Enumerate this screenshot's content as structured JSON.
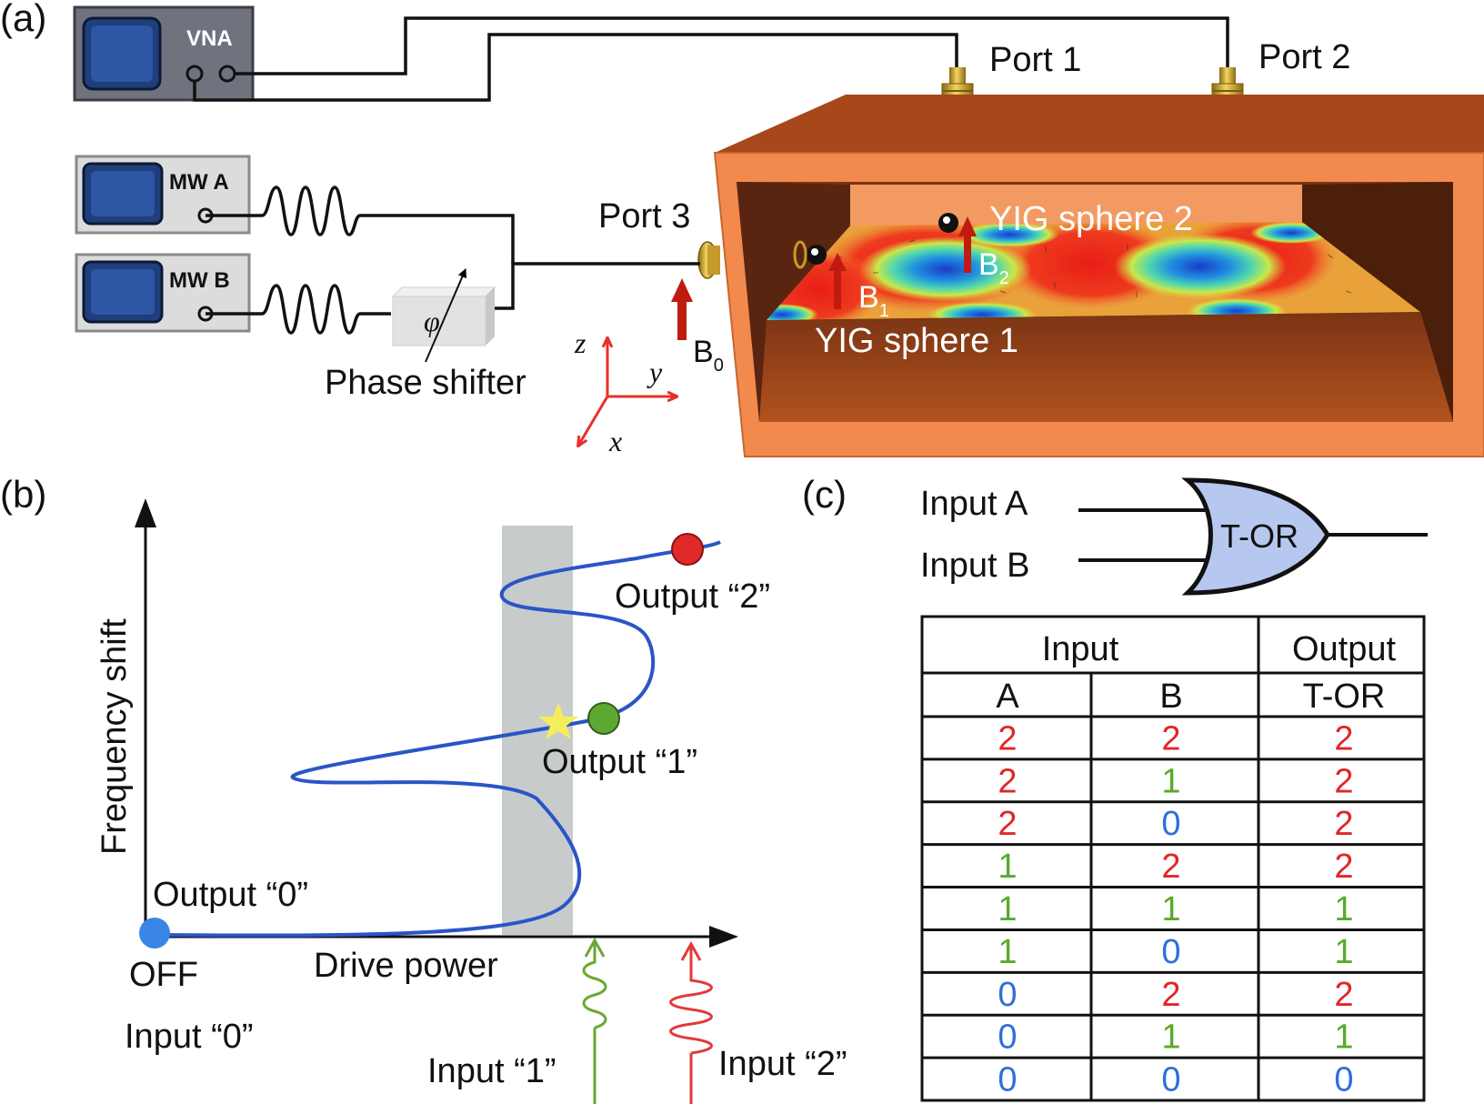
{
  "panel_a": {
    "label": "(a)",
    "vna": "VNA",
    "mw_a": "MW A",
    "mw_b": "MW B",
    "phi": "φ",
    "phase_shifter": "Phase shifter",
    "port1": "Port 1",
    "port2": "Port 2",
    "port3": "Port 3",
    "yig1": "YIG sphere 1",
    "yig2": "YIG sphere 2",
    "b0": "B",
    "b0_sub": "0",
    "b1": "B",
    "b1_sub": "1",
    "b2": "B",
    "b2_sub": "2",
    "axis_z": "z",
    "axis_y": "y",
    "axis_x": "x"
  },
  "panel_b": {
    "label": "(b)",
    "ylabel": "Frequency shift",
    "xlabel": "Drive power",
    "out0": "Output “0”",
    "out1": "Output “1”",
    "out2": "Output “2”",
    "off": "OFF",
    "in0": "Input “0”",
    "in1": "Input “1”",
    "in2": "Input “2”",
    "colors": {
      "curve": "#2a55c8",
      "band": "#c8cbcb",
      "out0": "#3a86e6",
      "out1": "#5da832",
      "out2": "#e02a2a",
      "star": "#f5ee5a",
      "in1": "#6aa832",
      "in2": "#e23a3a"
    }
  },
  "panel_c": {
    "label": "(c)",
    "input_a": "Input A",
    "input_b": "Input B",
    "gate": "T-OR",
    "gate_fill": "#b7c8f0",
    "header_input": "Input",
    "header_output": "Output",
    "col_a": "A",
    "col_b": "B",
    "col_out": "T-OR",
    "rows": [
      [
        "2",
        "2",
        "2"
      ],
      [
        "2",
        "1",
        "2"
      ],
      [
        "2",
        "0",
        "2"
      ],
      [
        "1",
        "2",
        "2"
      ],
      [
        "1",
        "1",
        "1"
      ],
      [
        "1",
        "0",
        "1"
      ],
      [
        "0",
        "2",
        "2"
      ],
      [
        "0",
        "1",
        "1"
      ],
      [
        "0",
        "0",
        "0"
      ]
    ],
    "value_colors": {
      "0": "#2f6fd8",
      "1": "#5aaa2e",
      "2": "#e02626"
    }
  }
}
